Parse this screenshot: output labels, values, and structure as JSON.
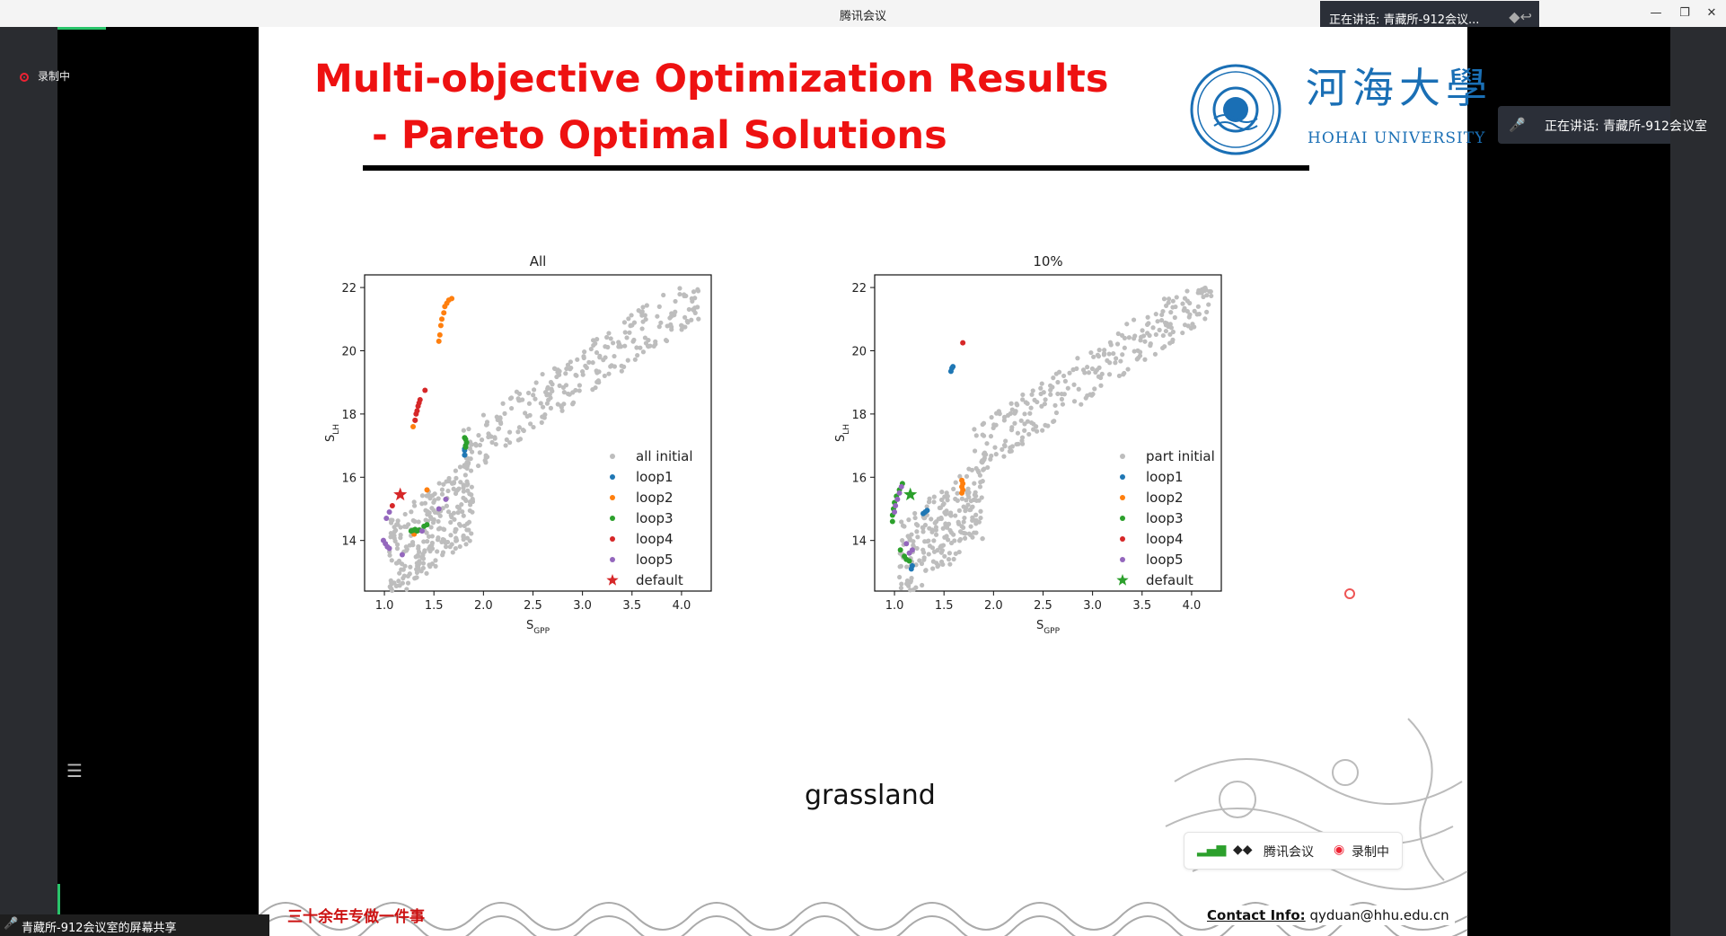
{
  "window": {
    "title": "腾讯会议",
    "speaker_top": "正在讲话: 青藏所-912会议..."
  },
  "left_panel": {
    "recording_label": "录制中"
  },
  "right_panel": {
    "speaker_label": "正在讲话: 青藏所-912会议室"
  },
  "bottom_bar": {
    "share_label": "青藏所-912会议室的屏幕共享"
  },
  "slide": {
    "title_line1": "Multi-objective Optimization Results",
    "title_line2": "- Pareto Optimal Solutions",
    "logo_cn": "河海大學",
    "logo_en": "HOHAI UNIVERSITY",
    "caption": "grassland",
    "slogan": "三十余年专做一件事",
    "contact_label": "Contact Info:",
    "contact_email": "qyduan@hhu.edu.cn",
    "meeting_pill": {
      "app_label": "腾讯会议",
      "recording_label": "录制中"
    }
  },
  "colors": {
    "title_red": "#ee1111",
    "logo_blue": "#1a6fb5",
    "gray": "#bdbdbd",
    "loop1": "#1f77b4",
    "loop2": "#ff7f0e",
    "loop3": "#2ca02c",
    "loop4": "#d62728",
    "loop5": "#9467bd"
  },
  "chart_data": [
    {
      "type": "scatter",
      "title": "All",
      "xlabel": "S_GPP",
      "ylabel": "S_LH",
      "xlim": [
        0.8,
        4.3
      ],
      "ylim": [
        12.4,
        22.4
      ],
      "xticks": [
        "1.0",
        "1.5",
        "2.0",
        "2.5",
        "3.0",
        "3.5",
        "4.0"
      ],
      "yticks": [
        "14",
        "16",
        "18",
        "20",
        "22"
      ],
      "legend_position": "bottom-right",
      "legend": [
        "all initial",
        "loop1",
        "loop2",
        "loop3",
        "loop4",
        "loop5",
        "default"
      ],
      "series": [
        {
          "name": "loop1",
          "color": "#1f77b4",
          "x": [
            1.81,
            1.81,
            1.82,
            1.81
          ],
          "y": [
            16.7,
            16.85,
            17.0,
            16.9
          ]
        },
        {
          "name": "loop2",
          "color": "#ff7f0e",
          "x": [
            1.55,
            1.56,
            1.57,
            1.58,
            1.6,
            1.61,
            1.63,
            1.65,
            1.68,
            1.29,
            1.31,
            1.43,
            1.3
          ],
          "y": [
            20.3,
            20.5,
            20.8,
            21.0,
            21.2,
            21.4,
            21.5,
            21.6,
            21.65,
            17.6,
            17.8,
            15.6,
            14.2
          ]
        },
        {
          "name": "loop3",
          "color": "#2ca02c",
          "x": [
            1.82,
            1.83,
            1.82,
            1.82,
            1.81,
            1.27,
            1.29,
            1.31,
            1.33,
            1.35,
            1.4,
            1.43
          ],
          "y": [
            17.2,
            17.1,
            17.0,
            16.95,
            17.25,
            14.3,
            14.32,
            14.35,
            14.3,
            14.33,
            14.45,
            14.5
          ]
        },
        {
          "name": "loop4",
          "color": "#d62728",
          "x": [
            1.31,
            1.32,
            1.33,
            1.34,
            1.35,
            1.36,
            1.41,
            1.08
          ],
          "y": [
            17.8,
            18.0,
            18.1,
            18.25,
            18.35,
            18.45,
            18.75,
            15.1
          ]
        },
        {
          "name": "loop5",
          "color": "#9467bd",
          "x": [
            0.99,
            1.01,
            1.03,
            1.05,
            1.18,
            1.02,
            1.05,
            1.55,
            1.62,
            1.38
          ],
          "y": [
            14.0,
            13.9,
            13.8,
            13.75,
            13.55,
            14.7,
            14.9,
            15.0,
            15.3,
            14.3
          ]
        },
        {
          "name": "default",
          "color": "#d62728",
          "marker": "star",
          "x": [
            1.16
          ],
          "y": [
            15.45
          ]
        }
      ]
    },
    {
      "type": "scatter",
      "title": "10%",
      "xlabel": "S_GPP",
      "ylabel": "S_LH",
      "xlim": [
        0.8,
        4.3
      ],
      "ylim": [
        12.4,
        22.4
      ],
      "xticks": [
        "1.0",
        "1.5",
        "2.0",
        "2.5",
        "3.0",
        "3.5",
        "4.0"
      ],
      "yticks": [
        "14",
        "16",
        "18",
        "20",
        "22"
      ],
      "legend_position": "bottom-right",
      "legend": [
        "part initial",
        "loop1",
        "loop2",
        "loop3",
        "loop4",
        "loop5",
        "default"
      ],
      "series": [
        {
          "name": "loop1",
          "color": "#1f77b4",
          "x": [
            1.57,
            1.58,
            1.59,
            1.29,
            1.31,
            1.33,
            1.17,
            1.18
          ],
          "y": [
            19.35,
            19.45,
            19.5,
            14.85,
            14.9,
            14.95,
            13.1,
            13.2
          ]
        },
        {
          "name": "loop2",
          "color": "#ff7f0e",
          "x": [
            1.68,
            1.69,
            1.68,
            1.69,
            1.68
          ],
          "y": [
            15.5,
            15.6,
            15.7,
            15.8,
            15.9
          ]
        },
        {
          "name": "loop3",
          "color": "#2ca02c",
          "x": [
            0.98,
            0.98,
            0.99,
            1.0,
            1.02,
            1.05,
            1.08,
            1.12,
            1.15,
            1.1,
            1.06
          ],
          "y": [
            14.6,
            14.8,
            15.0,
            15.2,
            15.4,
            15.6,
            15.8,
            13.4,
            13.35,
            13.5,
            13.7
          ]
        },
        {
          "name": "loop4",
          "color": "#d62728",
          "x": [
            1.69
          ],
          "y": [
            20.25
          ]
        },
        {
          "name": "loop5",
          "color": "#9467bd",
          "x": [
            1.01,
            1.03,
            1.05,
            1.07,
            1.0,
            1.15,
            1.18,
            1.12
          ],
          "y": [
            15.1,
            15.3,
            15.5,
            15.7,
            14.9,
            13.6,
            13.7,
            13.9
          ]
        },
        {
          "name": "default",
          "color": "#2ca02c",
          "marker": "star",
          "x": [
            1.16
          ],
          "y": [
            15.45
          ]
        }
      ]
    }
  ]
}
